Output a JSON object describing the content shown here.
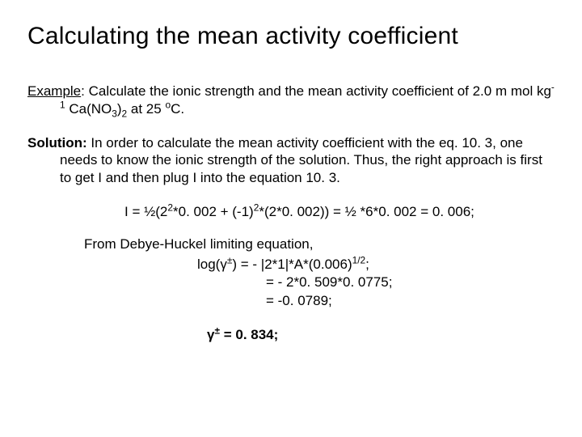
{
  "title": "Calculating the mean activity coefficient",
  "example": {
    "label": "Example",
    "text_before": ":  Calculate the ionic strength and the mean activity coefficient of  2.0 m mol kg",
    "sup1": "-1",
    "text_mid1": " Ca(NO",
    "sub1": "3",
    "text_mid2": ")",
    "sub2": "2",
    "text_mid3": " at 25 ",
    "sup2": "o",
    "text_after": "C."
  },
  "solution": {
    "label": "Solution:",
    "text": "  In order to calculate the mean activity coefficient with the eq. 10. 3, one needs to know the ionic strength of the solution. Thus, the right approach is first to get I and then plug I into the equation 10. 3."
  },
  "eq_I": {
    "pre": "I = ½(2",
    "sup1": "2",
    "mid1": "*0. 002  +  (-1)",
    "sup2": "2",
    "mid2": "*(2*0. 002)) = ½ *6*0. 002 = 0. 006;"
  },
  "eq_from": "From Debye-Huckel limiting equation,",
  "eq_log": {
    "pre": "log(γ",
    "sup1": "±",
    "mid1": ") = - |2*1|*A*(0.006)",
    "sup2": "1/2",
    "post": ";"
  },
  "eq_line2": "= - 2*0. 509*0. 0775;",
  "eq_line3": "= -0. 0789;",
  "eq_gamma": {
    "pre": "γ",
    "sup": "±",
    "post": " = 0. 834;"
  },
  "colors": {
    "background": "#ffffff",
    "text": "#000000"
  },
  "fonts": {
    "family": "Arial",
    "title_size_pt": 30,
    "body_size_pt": 17
  }
}
